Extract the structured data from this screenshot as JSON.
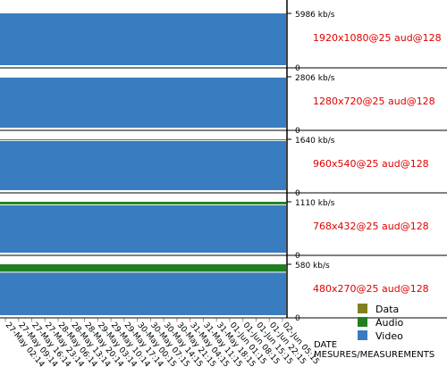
{
  "chart_data": {
    "type": "stacked-bar-panels",
    "legend_position": "bottom-right",
    "x_categories": [
      "27-May 02:14",
      "27-May 09:14",
      "27-May 16:14",
      "27-May 23:14",
      "28-May 06:14",
      "28-May 13:14",
      "28-May 20:14",
      "29-May 03:14",
      "29-May 10:14",
      "29-May 17:14",
      "30-May 00:15",
      "30-May 07:15",
      "30-May 14:15",
      "30-May 21:15",
      "31-May 04:15",
      "31-May 11:15",
      "31-May 18:15",
      "01-Jun 01:15",
      "01-Jun 08:15",
      "01-Jun 15:15",
      "01-Jun 22:15",
      "02-Jun 05:15"
    ],
    "xlabel": {
      "line1": "DATE",
      "line2": "MESURES/MEASUREMENTS"
    },
    "legend": [
      {
        "name": "Data",
        "color": "#808020"
      },
      {
        "name": "Audio",
        "color": "#208020"
      },
      {
        "name": "Video",
        "color": "#3a7cc0"
      }
    ],
    "panels": [
      {
        "profile": "1920x1080@25 aud@128",
        "ymax_label": "5986 kb/s",
        "ymin_label": "0",
        "ymax": 5986,
        "audio": 0,
        "video": 5986
      },
      {
        "profile": "1280x720@25 aud@128",
        "ymax_label": "2806 kb/s",
        "ymin_label": "0",
        "ymax": 2806,
        "audio": 20,
        "video": 2786
      },
      {
        "profile": "960x540@25 aud@128",
        "ymax_label": "1640 kb/s",
        "ymin_label": "0",
        "ymax": 1640,
        "audio": 40,
        "video": 1600
      },
      {
        "profile": "768x432@25 aud@128",
        "ymax_label": "1110 kb/s",
        "ymin_label": "0",
        "ymax": 1110,
        "audio": 65,
        "video": 1045
      },
      {
        "profile": "480x270@25 aud@128",
        "ymax_label": "580 kb/s",
        "ymin_label": "0",
        "ymax": 580,
        "audio": 90,
        "video": 490
      }
    ]
  }
}
